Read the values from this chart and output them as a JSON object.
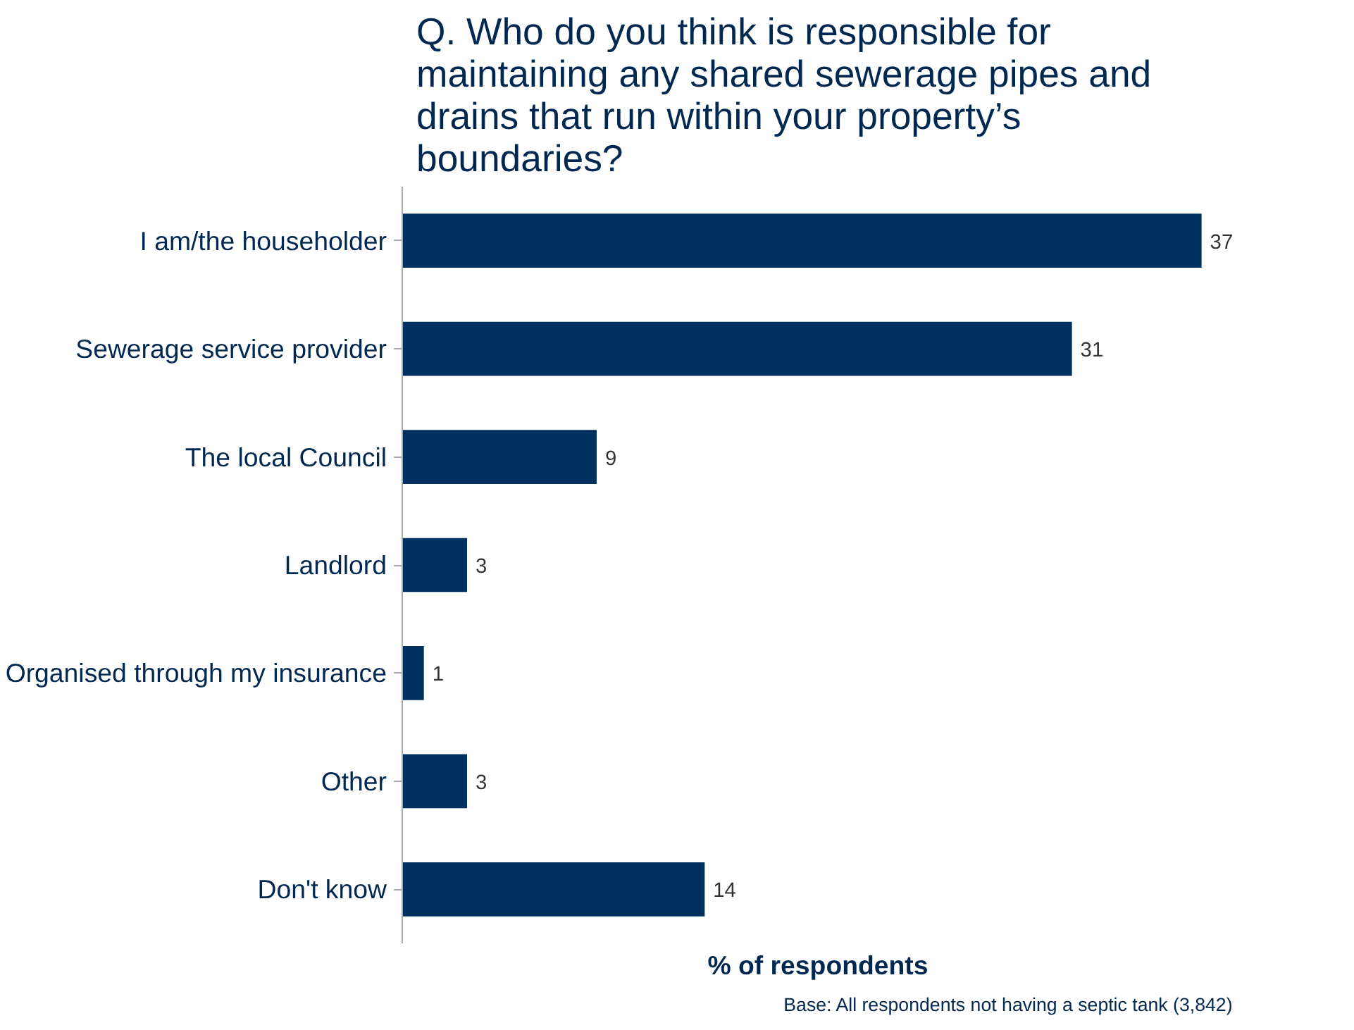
{
  "chart_data": {
    "type": "bar",
    "orientation": "horizontal",
    "title": "Q. Who do you think is responsible for maintaining any shared sewerage pipes and drains that run within your property’s boundaries?",
    "categories": [
      "I am/the householder",
      "Sewerage service provider",
      "The local Council",
      "Landlord",
      "Organised through my insurance",
      "Other",
      "Don't know"
    ],
    "values": [
      37,
      31,
      9,
      3,
      1,
      3,
      14
    ],
    "color": "#00305f",
    "xlabel": "% of respondents",
    "data_labels": true,
    "tick_labels": "y",
    "grid": false,
    "annotations": [
      "Base: All respondents not having a septic tank (3,842)"
    ]
  }
}
